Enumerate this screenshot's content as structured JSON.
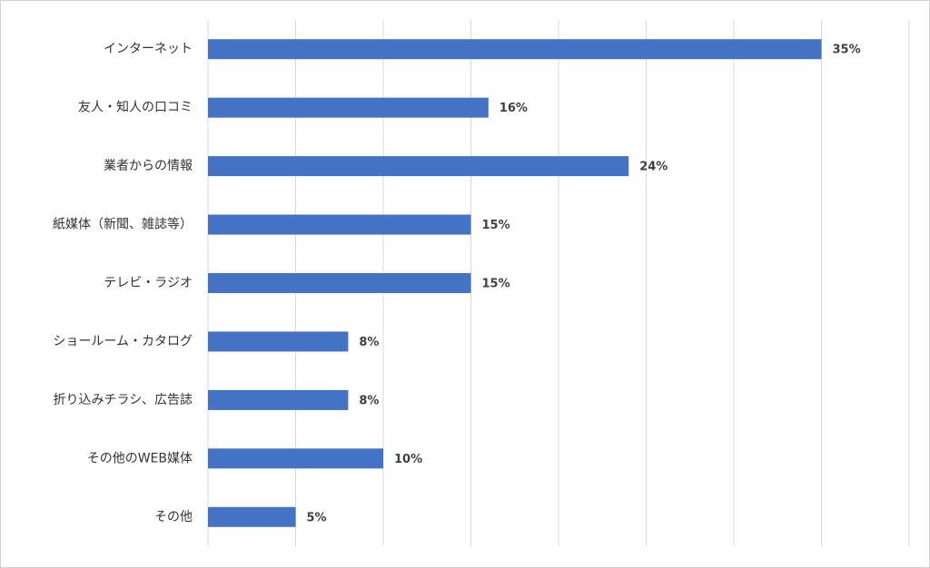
{
  "chart_data": {
    "type": "bar",
    "orientation": "horizontal",
    "categories": [
      "インターネット",
      "友人・知人の口コミ",
      "業者からの情報",
      "紙媒体（新聞、雑誌等）",
      "テレビ・ラジオ",
      "ショールーム・カタログ",
      "折り込みチラシ、広告誌",
      "その他のWEB媒体",
      "その他"
    ],
    "values": [
      35,
      16,
      24,
      15,
      15,
      8,
      8,
      10,
      5
    ],
    "value_labels": [
      "35%",
      "16%",
      "24%",
      "15%",
      "15%",
      "8%",
      "8%",
      "10%",
      "5%"
    ],
    "color": "#4472c4",
    "xlim": [
      0,
      40
    ],
    "xticks": [
      0,
      5,
      10,
      15,
      20,
      25,
      30,
      35,
      40
    ],
    "grid": true
  }
}
